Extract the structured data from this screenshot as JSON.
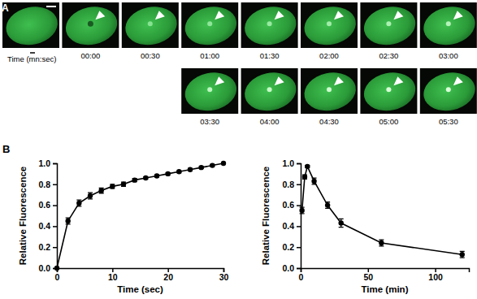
{
  "panel_a": {
    "label": "A",
    "time_label": "Time (mn:sec)",
    "times": [
      "00:00",
      "00:30",
      "01:00",
      "01:30",
      "02:00",
      "02:30",
      "03:00",
      "03:30",
      "04:00",
      "04:30",
      "05:00",
      "05:30"
    ]
  },
  "panel_b": {
    "label": "B"
  },
  "chart_data": [
    {
      "type": "line",
      "x": [
        0,
        2,
        4,
        6,
        8,
        10,
        12,
        14,
        16,
        18,
        20,
        22,
        24,
        26,
        28,
        30
      ],
      "series": [
        {
          "color": "#000000",
          "marker": "circle",
          "values": [
            0,
            0.45,
            0.62,
            0.69,
            0.74,
            0.78,
            0.8,
            0.84,
            0.86,
            0.88,
            0.9,
            0.92,
            0.94,
            0.96,
            0.98,
            1.0
          ],
          "errors": [
            0,
            0.03,
            0.03,
            0.03,
            0.025,
            0.02,
            0.02,
            0.015,
            0.01,
            0.01,
            0.01,
            0.01,
            0.01,
            0.01,
            0.01,
            0
          ]
        }
      ],
      "xlabel": "Time (sec)",
      "ylabel": "Relative Fluorescence",
      "xlim": [
        0,
        30
      ],
      "xticks": [
        0,
        10,
        20,
        30
      ],
      "ylim": [
        0,
        1
      ],
      "yticks": [
        {
          "value": 0,
          "label": "0.0"
        },
        {
          "value": 0.2,
          "label": "0.2"
        },
        {
          "value": 0.4,
          "label": "0.4"
        },
        {
          "value": 0.6,
          "label": "0.6"
        },
        {
          "value": 0.8,
          "label": "0.8"
        },
        {
          "value": 1,
          "label": "1.0"
        }
      ]
    },
    {
      "type": "line",
      "x": [
        1,
        3,
        5,
        10,
        20,
        30,
        60,
        120
      ],
      "series": [
        {
          "color": "#000000",
          "marker": "circle",
          "values": [
            0.55,
            0.87,
            0.97,
            0.83,
            0.6,
            0.43,
            0.24,
            0.13
          ],
          "errors": [
            0.03,
            0.02,
            0.01,
            0.03,
            0.03,
            0.04,
            0.03,
            0.03
          ]
        }
      ],
      "xlabel": "Time (min)",
      "ylabel": "Relative Fluorescence",
      "xlim": [
        0,
        125
      ],
      "xticks": [
        0,
        50,
        100
      ],
      "ylim": [
        0,
        1
      ],
      "yticks": [
        {
          "value": 0,
          "label": "0.0"
        },
        {
          "value": 0.2,
          "label": "0.2"
        },
        {
          "value": 0.4,
          "label": "0.4"
        },
        {
          "value": 0.6,
          "label": "0.6"
        },
        {
          "value": 0.8,
          "label": "0.8"
        },
        {
          "value": 1,
          "label": "1.0"
        }
      ]
    }
  ]
}
